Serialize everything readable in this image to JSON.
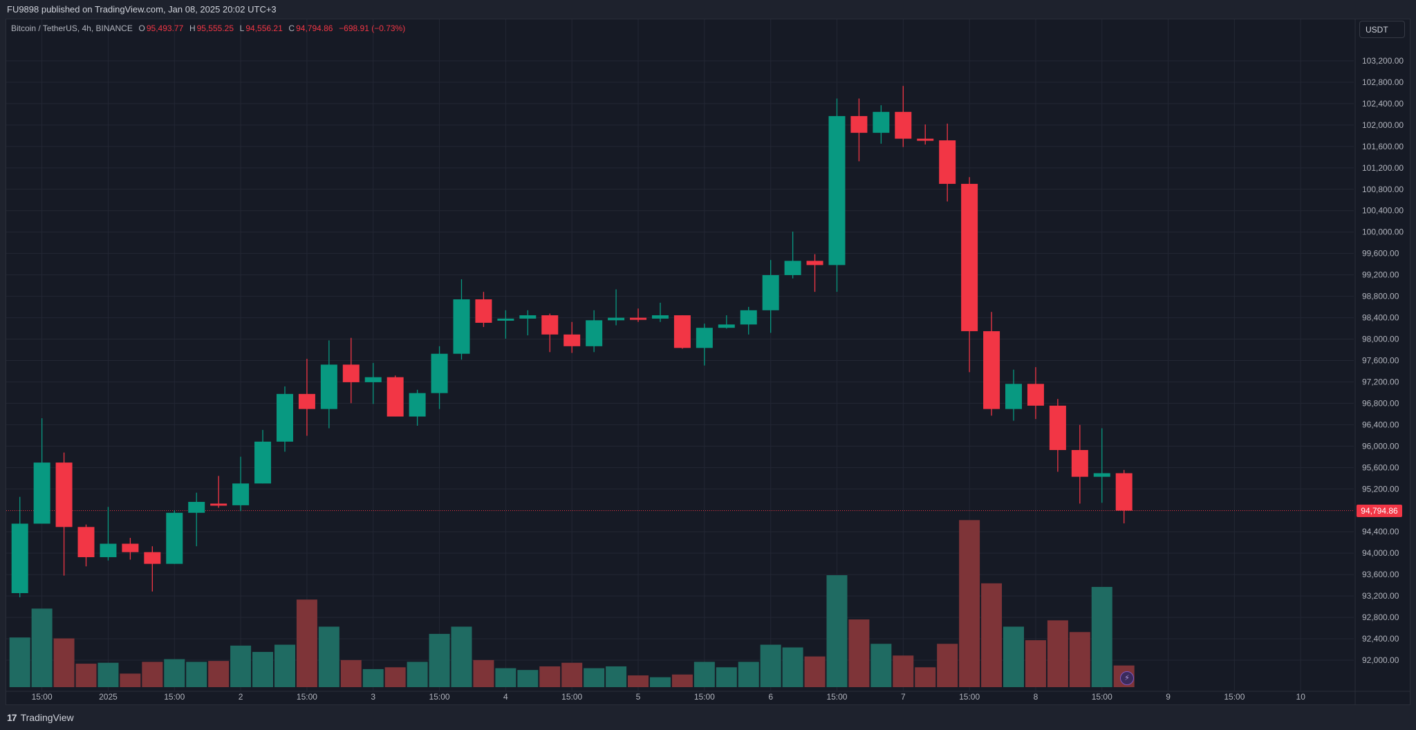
{
  "header": {
    "published": "FU9898 published on TradingView.com, Jan 08, 2025 20:02 UTC+3"
  },
  "legend": {
    "symbol": "Bitcoin / TetherUS, 4h, BINANCE",
    "o_label": "O",
    "o": "95,493.77",
    "h_label": "H",
    "h": "95,555.25",
    "l_label": "L",
    "l": "94,556.21",
    "c_label": "C",
    "c": "94,794.86",
    "change": "−698.91 (−0.73%)"
  },
  "currency_button": "USDT",
  "last_price_label": "94,794.86",
  "footer": {
    "logo_mark": "17",
    "brand": "TradingView"
  },
  "icons": {
    "bolt": "⚡"
  },
  "colors": {
    "up": "#089981",
    "down": "#f23645",
    "up_volume": "#1f6b62",
    "down_volume": "#7e3438",
    "background": "#161a25",
    "grid": "#232734"
  },
  "chart_data": {
    "type": "candlestick",
    "title": "Bitcoin / TetherUS, 4h, BINANCE",
    "ylim": [
      91700,
      103600
    ],
    "yticks": [
      103200,
      102800,
      102400,
      102000,
      101600,
      101200,
      100800,
      100400,
      100000,
      99600,
      99200,
      98800,
      98400,
      98000,
      97600,
      97200,
      96800,
      96400,
      96000,
      95600,
      95200,
      94400,
      94000,
      93600,
      93200,
      92800,
      92400,
      92000
    ],
    "ytick_labels": [
      "103,200.00",
      "102,800.00",
      "102,400.00",
      "102,000.00",
      "101,600.00",
      "101,200.00",
      "100,800.00",
      "100,400.00",
      "100,000.00",
      "99,600.00",
      "99,200.00",
      "98,800.00",
      "98,400.00",
      "98,000.00",
      "97,600.00",
      "97,200.00",
      "96,800.00",
      "96,400.00",
      "96,000.00",
      "95,600.00",
      "95,200.00",
      "94,400.00",
      "94,000.00",
      "93,600.00",
      "93,200.00",
      "92,800.00",
      "92,400.00",
      "92,000.00"
    ],
    "xtick_labels": [
      "15:00",
      "2025",
      "15:00",
      "2",
      "15:00",
      "3",
      "15:00",
      "4",
      "15:00",
      "5",
      "15:00",
      "6",
      "15:00",
      "7",
      "15:00",
      "8",
      "15:00",
      "9",
      "15:00",
      "10"
    ],
    "last_price": 94794.86,
    "ohlc": [
      [
        93253,
        95052,
        93175,
        94551
      ],
      [
        94551,
        96522,
        94551,
        95693
      ],
      [
        95693,
        95880,
        93581,
        94489
      ],
      [
        94489,
        94535,
        93753,
        93925
      ],
      [
        93925,
        94864,
        93863,
        94176
      ],
      [
        94176,
        94285,
        93879,
        94019
      ],
      [
        94019,
        94129,
        93284,
        93800
      ],
      [
        93800,
        94801,
        93800,
        94754
      ],
      [
        94754,
        95130,
        94129,
        94958
      ],
      [
        94926,
        95443,
        94848,
        94895
      ],
      [
        94895,
        95802,
        94786,
        95302
      ],
      [
        95302,
        96303,
        95302,
        96084
      ],
      [
        96084,
        97116,
        95896,
        96975
      ],
      [
        96975,
        97632,
        96193,
        96694
      ],
      [
        96694,
        97976,
        96334,
        97523
      ],
      [
        97523,
        98023,
        96803,
        97194
      ],
      [
        97194,
        97554,
        96788,
        97288
      ],
      [
        97288,
        97319,
        96553,
        96553
      ],
      [
        96553,
        97053,
        96381,
        96991
      ],
      [
        96991,
        97867,
        96694,
        97726
      ],
      [
        97726,
        99118,
        97617,
        98743
      ],
      [
        98743,
        98883,
        98226,
        98305
      ],
      [
        98352,
        98539,
        98008,
        98383
      ],
      [
        98383,
        98539,
        98070,
        98445
      ],
      [
        98445,
        98477,
        97757,
        98086
      ],
      [
        98086,
        98320,
        97742,
        97867
      ],
      [
        97867,
        98539,
        97757,
        98352
      ],
      [
        98352,
        98930,
        98258,
        98399
      ],
      [
        98399,
        98571,
        98320,
        98367
      ],
      [
        98383,
        98680,
        98320,
        98445
      ],
      [
        98445,
        98445,
        97820,
        97835
      ],
      [
        97835,
        98289,
        97507,
        98211
      ],
      [
        98211,
        98445,
        98195,
        98273
      ],
      [
        98273,
        98602,
        98086,
        98539
      ],
      [
        98539,
        99478,
        98117,
        99196
      ],
      [
        99196,
        100009,
        99134,
        99462
      ],
      [
        99462,
        99587,
        98883,
        99384
      ],
      [
        99384,
        102496,
        98883,
        102168
      ],
      [
        102168,
        102496,
        101323,
        101855
      ],
      [
        101855,
        102371,
        101652,
        102246
      ],
      [
        102246,
        102731,
        101589,
        101745
      ],
      [
        101745,
        102011,
        101636,
        101714
      ],
      [
        101714,
        102027,
        100572,
        100901
      ],
      [
        100901,
        101026,
        97382,
        98148
      ],
      [
        98148,
        98508,
        96569,
        96694
      ],
      [
        96694,
        97429,
        96475,
        97163
      ],
      [
        97163,
        97476,
        96506,
        96756
      ],
      [
        96756,
        96881,
        95521,
        95927
      ],
      [
        95927,
        96397,
        94926,
        95427
      ],
      [
        95427,
        96334,
        94942,
        95494
      ],
      [
        95493.77,
        95555.25,
        94556.21,
        94794.86
      ]
    ],
    "volume_relative": [
      55,
      87,
      54,
      26,
      27,
      15,
      28,
      31,
      28,
      29,
      46,
      39,
      47,
      97,
      67,
      30,
      20,
      22,
      28,
      59,
      67,
      30,
      21,
      19,
      23,
      27,
      21,
      23,
      13,
      11,
      14,
      28,
      22,
      28,
      47,
      44,
      34,
      124,
      75,
      48,
      35,
      22,
      48,
      185,
      115,
      67,
      52,
      74,
      61,
      111,
      24
    ]
  }
}
